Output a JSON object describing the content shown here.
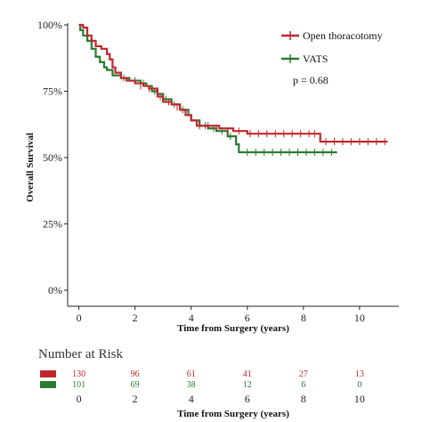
{
  "chart_data": {
    "type": "line",
    "title": "",
    "xlabel": "Time from Surgery (years)",
    "ylabel": "Overall Survival",
    "xlim": [
      -0.4,
      11.4
    ],
    "ylim": [
      0,
      100
    ],
    "x_ticks": [
      0,
      2,
      4,
      6,
      8,
      10
    ],
    "y_ticks": [
      0,
      25,
      50,
      75,
      100
    ],
    "y_tick_labels": [
      "0%",
      "25%",
      "50%",
      "75%",
      "100%"
    ],
    "grid": false,
    "legend_position": "top-right",
    "annotation": "p = 0.68",
    "series": [
      {
        "name": "Open thoracotomy",
        "color": "#c0282d",
        "steps": [
          [
            0,
            100
          ],
          [
            0.15,
            99
          ],
          [
            0.3,
            96
          ],
          [
            0.45,
            94
          ],
          [
            0.6,
            92
          ],
          [
            0.8,
            91
          ],
          [
            1.0,
            89
          ],
          [
            1.1,
            87
          ],
          [
            1.2,
            84
          ],
          [
            1.3,
            82
          ],
          [
            1.5,
            80
          ],
          [
            1.7,
            79
          ],
          [
            2.0,
            78
          ],
          [
            2.3,
            77
          ],
          [
            2.5,
            76
          ],
          [
            2.8,
            73
          ],
          [
            3.0,
            71
          ],
          [
            3.3,
            70
          ],
          [
            3.6,
            68
          ],
          [
            3.8,
            66
          ],
          [
            4.0,
            64
          ],
          [
            4.2,
            62
          ],
          [
            5.0,
            61
          ],
          [
            5.5,
            60
          ],
          [
            6.0,
            59
          ],
          [
            8.6,
            56
          ],
          [
            11.0,
            56
          ]
        ],
        "censors": [
          [
            2.2,
            77
          ],
          [
            2.5,
            76
          ],
          [
            2.9,
            73
          ],
          [
            3.2,
            71
          ],
          [
            3.5,
            69
          ],
          [
            3.8,
            67
          ],
          [
            4.3,
            62
          ],
          [
            4.6,
            62
          ],
          [
            4.9,
            61
          ],
          [
            5.3,
            60
          ],
          [
            5.7,
            60
          ],
          [
            6.1,
            59
          ],
          [
            6.4,
            59
          ],
          [
            6.7,
            59
          ],
          [
            7.0,
            59
          ],
          [
            7.3,
            59
          ],
          [
            7.6,
            59
          ],
          [
            7.9,
            59
          ],
          [
            8.2,
            59
          ],
          [
            8.4,
            59
          ],
          [
            8.8,
            56
          ],
          [
            9.1,
            56
          ],
          [
            9.4,
            56
          ],
          [
            9.7,
            56
          ],
          [
            10.0,
            56
          ],
          [
            10.3,
            56
          ],
          [
            10.6,
            56
          ],
          [
            10.9,
            56
          ]
        ]
      },
      {
        "name": "VATS",
        "color": "#2a7a32",
        "steps": [
          [
            0,
            100
          ],
          [
            0.05,
            98
          ],
          [
            0.15,
            96
          ],
          [
            0.3,
            94
          ],
          [
            0.45,
            91
          ],
          [
            0.6,
            88
          ],
          [
            0.75,
            86
          ],
          [
            0.9,
            84
          ],
          [
            1.0,
            83
          ],
          [
            1.2,
            81
          ],
          [
            1.5,
            80
          ],
          [
            1.8,
            79
          ],
          [
            2.2,
            78
          ],
          [
            2.4,
            77
          ],
          [
            2.6,
            75
          ],
          [
            2.8,
            74
          ],
          [
            3.0,
            72
          ],
          [
            3.3,
            70
          ],
          [
            3.6,
            68
          ],
          [
            3.9,
            66
          ],
          [
            4.0,
            64
          ],
          [
            4.3,
            62
          ],
          [
            4.6,
            61
          ],
          [
            4.9,
            60
          ],
          [
            5.3,
            58
          ],
          [
            5.6,
            55
          ],
          [
            5.7,
            52
          ],
          [
            9.2,
            52
          ]
        ],
        "censors": [
          [
            1.6,
            80
          ],
          [
            2.0,
            79
          ],
          [
            2.3,
            78
          ],
          [
            2.7,
            75
          ],
          [
            3.1,
            72
          ],
          [
            3.4,
            70
          ],
          [
            3.7,
            68
          ],
          [
            4.2,
            63
          ],
          [
            4.5,
            62
          ],
          [
            4.8,
            61
          ],
          [
            5.1,
            60
          ],
          [
            5.4,
            58
          ],
          [
            6.0,
            52
          ],
          [
            6.3,
            52
          ],
          [
            6.6,
            52
          ],
          [
            6.9,
            52
          ],
          [
            7.2,
            52
          ],
          [
            7.5,
            52
          ],
          [
            7.8,
            52
          ],
          [
            8.1,
            52
          ],
          [
            8.4,
            52
          ],
          [
            8.7,
            52
          ],
          [
            9.0,
            52
          ]
        ]
      }
    ]
  },
  "risk_table": {
    "title": "Number at Risk",
    "xlabel": "Time from Surgery (years)",
    "times": [
      0,
      2,
      4,
      6,
      8,
      10
    ],
    "rows": [
      {
        "color": "#c0282d",
        "counts": [
          130,
          96,
          61,
          41,
          27,
          13
        ]
      },
      {
        "color": "#2a7a32",
        "counts": [
          101,
          69,
          38,
          12,
          6,
          0
        ]
      }
    ]
  }
}
